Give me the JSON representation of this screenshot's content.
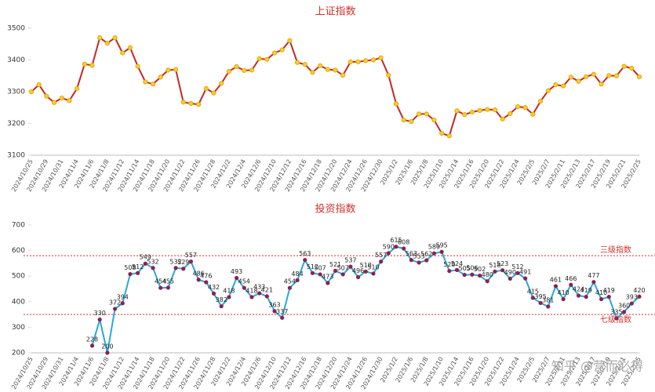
{
  "chart_data": [
    {
      "type": "line",
      "title": "上证指数",
      "color": "#c62828",
      "marker_color": "#f5d033",
      "ylim": [
        3100,
        3500
      ],
      "yticks": [
        3100,
        3200,
        3300,
        3400,
        3500
      ],
      "grid": false,
      "categories": [
        "2024/10/25",
        null,
        "2024/10/29",
        null,
        "2024/10/31",
        null,
        "2024/11/4",
        null,
        "2024/11/6",
        null,
        "2024/11/8",
        null,
        "2024/11/12",
        null,
        "2024/11/14",
        null,
        "2024/11/18",
        null,
        "2024/11/20",
        null,
        "2024/11/22",
        null,
        "2024/11/26",
        null,
        "2024/11/28",
        null,
        "2024/12/2",
        null,
        "2024/12/4",
        null,
        "2024/12/6",
        null,
        "2024/12/10",
        null,
        "2024/12/12",
        null,
        "2024/12/16",
        null,
        "2024/12/18",
        null,
        "2024/12/20",
        null,
        "2024/12/24",
        null,
        "2024/12/26",
        null,
        "2024/12/30",
        null,
        "2025/1/2",
        null,
        "2025/1/6",
        null,
        "2025/1/8",
        null,
        "2025/1/10",
        null,
        "2025/1/14",
        null,
        "2025/1/16",
        null,
        "2025/1/20",
        null,
        "2025/1/22",
        null,
        "2025/1/24",
        null,
        "2025/2/5",
        null,
        "2025/2/7",
        null,
        "2025/2/11",
        null,
        "2025/2/13",
        null,
        "2025/2/17",
        null,
        "2025/2/19",
        null,
        "2025/2/21",
        null,
        "2025/2/25"
      ],
      "values": [
        3300,
        3322,
        3286,
        3266,
        3280,
        3272,
        3310,
        3387,
        3383,
        3470,
        3453,
        3470,
        3422,
        3439,
        3380,
        3331,
        3324,
        3346,
        3368,
        3370,
        3267,
        3263,
        3260,
        3310,
        3296,
        3326,
        3364,
        3379,
        3367,
        3368,
        3404,
        3402,
        3422,
        3432,
        3461,
        3392,
        3386,
        3361,
        3382,
        3370,
        3368,
        3352,
        3394,
        3394,
        3398,
        3400,
        3407,
        3352,
        3262,
        3211,
        3206,
        3230,
        3230,
        3211,
        3169,
        3161,
        3240,
        3228,
        3236,
        3241,
        3244,
        3243,
        3214,
        3231,
        3253,
        3250,
        3229,
        3270,
        3303,
        3322,
        3318,
        3346,
        3333,
        3347,
        3355,
        3324,
        3351,
        3350,
        3380,
        3374,
        3347
      ]
    },
    {
      "type": "line",
      "title": "投资指数",
      "color": "#29a8d8",
      "marker_color": "#8b2252",
      "ylim": [
        200,
        700
      ],
      "yticks": [
        200,
        300,
        400,
        500,
        600,
        700
      ],
      "grid": false,
      "reference_lines": [
        {
          "value": 580,
          "label": "三级指数"
        },
        {
          "value": 350,
          "label": "七级指数"
        }
      ],
      "watermark": "知乎 @营而必得",
      "categories": [
        "2024/10/25",
        null,
        "2024/10/29",
        null,
        "2024/10/31",
        null,
        "2024/11/4",
        null,
        "2024/11/6",
        null,
        "2024/11/8",
        null,
        "2024/11/12",
        null,
        "2024/11/14",
        null,
        "2024/11/18",
        null,
        "2024/11/20",
        null,
        "2024/11/22",
        null,
        "2024/11/26",
        null,
        "2024/11/28",
        null,
        "2024/12/2",
        null,
        "2024/12/4",
        null,
        "2024/12/6",
        null,
        "2024/12/10",
        null,
        "2024/12/12",
        null,
        "2024/12/16",
        null,
        "2024/12/18",
        null,
        "2024/12/20",
        null,
        "2024/12/24",
        null,
        "2024/12/26",
        null,
        "2024/12/30",
        null,
        "2025/1/2",
        null,
        "2025/1/6",
        null,
        "2025/1/8",
        null,
        "2025/1/10",
        null,
        "2025/1/14",
        null,
        "2025/1/16",
        null,
        "2025/1/20",
        null,
        "2025/1/22",
        null,
        "2025/1/24",
        null,
        "2025/2/5",
        null,
        "2025/2/7",
        null,
        "2025/2/11",
        null,
        "2025/2/13",
        null,
        "2025/2/17",
        null,
        "2025/2/19",
        null,
        "2025/2/21",
        null,
        "2025/2/25"
      ],
      "values": [
        null,
        null,
        null,
        null,
        null,
        null,
        null,
        null,
        228,
        330,
        200,
        372,
        394,
        508,
        512,
        549,
        532,
        454,
        455,
        532,
        529,
        557,
        486,
        476,
        432,
        382,
        418,
        493,
        454,
        418,
        433,
        421,
        363,
        337,
        454,
        484,
        563,
        512,
        507,
        473,
        521,
        507,
        537,
        496,
        518,
        510,
        557,
        590,
        615,
        608,
        563,
        553,
        562,
        589,
        595,
        520,
        524,
        505,
        506,
        502,
        480,
        518,
        523,
        490,
        512,
        491,
        415,
        395,
        381,
        461,
        410,
        466,
        424,
        419,
        477,
        410,
        419,
        335,
        360,
        393,
        420
      ]
    }
  ]
}
